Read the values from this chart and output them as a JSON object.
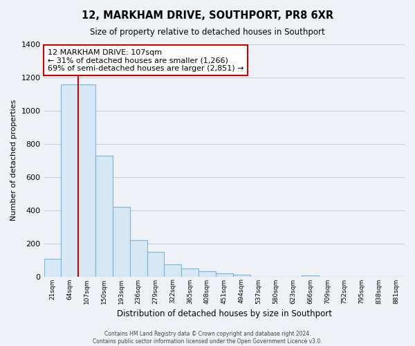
{
  "title": "12, MARKHAM DRIVE, SOUTHPORT, PR8 6XR",
  "subtitle": "Size of property relative to detached houses in Southport",
  "xlabel": "Distribution of detached houses by size in Southport",
  "ylabel": "Number of detached properties",
  "bar_labels": [
    "21sqm",
    "64sqm",
    "107sqm",
    "150sqm",
    "193sqm",
    "236sqm",
    "279sqm",
    "322sqm",
    "365sqm",
    "408sqm",
    "451sqm",
    "494sqm",
    "537sqm",
    "580sqm",
    "623sqm",
    "666sqm",
    "709sqm",
    "752sqm",
    "795sqm",
    "838sqm",
    "881sqm"
  ],
  "bar_values": [
    107,
    1160,
    1160,
    730,
    420,
    220,
    148,
    72,
    50,
    32,
    18,
    12,
    0,
    0,
    0,
    8,
    0,
    0,
    0,
    0,
    0
  ],
  "bar_color_fill": "#d6e8f5",
  "bar_color_edge": "#7ab4d4",
  "highlight_bar_index": 2,
  "highlight_color": "#cc0000",
  "ylim": [
    0,
    1400
  ],
  "yticks": [
    0,
    200,
    400,
    600,
    800,
    1000,
    1200,
    1400
  ],
  "annotation_title": "12 MARKHAM DRIVE: 107sqm",
  "annotation_line1": "← 31% of detached houses are smaller (1,266)",
  "annotation_line2": "69% of semi-detached houses are larger (2,851) →",
  "footer_line1": "Contains HM Land Registry data © Crown copyright and database right 2024.",
  "footer_line2": "Contains public sector information licensed under the Open Government Licence v3.0.",
  "background_color": "#eef2f7",
  "plot_bg_color": "#eef2f7",
  "grid_color": "#c0cfe0"
}
